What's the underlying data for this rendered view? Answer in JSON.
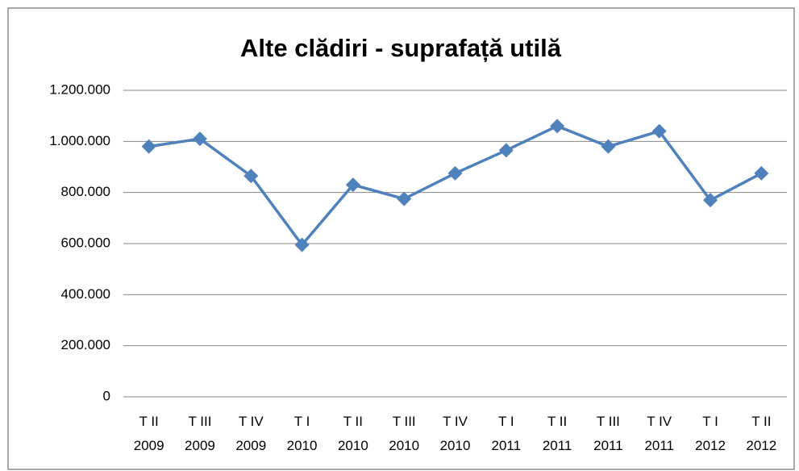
{
  "chart_data": {
    "type": "line",
    "title": "Alte clădiri - suprafață utilă",
    "categories": [
      "T II 2009",
      "T III 2009",
      "T IV 2009",
      "T I 2010",
      "T II 2010",
      "T III 2010",
      "T IV 2010",
      "T I 2011",
      "T II 2011",
      "T III 2011",
      "T IV 2011",
      "T I 2012",
      "T II 2012"
    ],
    "series": [
      {
        "color": "#4f81bd",
        "values": [
          980000,
          1010000,
          865000,
          595000,
          830000,
          775000,
          875000,
          965000,
          1060000,
          980000,
          1040000,
          770000,
          875000
        ]
      }
    ],
    "ylim": [
      0,
      1200000
    ],
    "yticks": [
      0,
      {
        "value": 200000,
        "label": "200.000"
      },
      {
        "value": 400000,
        "label": "400.000"
      },
      {
        "value": 600000,
        "label": "600.000"
      },
      {
        "value": 800000,
        "label": "800.000"
      },
      {
        "value": 1000000,
        "label": "1.000.000"
      },
      {
        "value": 1200000,
        "label": "1.200.000"
      }
    ],
    "grid": true
  }
}
